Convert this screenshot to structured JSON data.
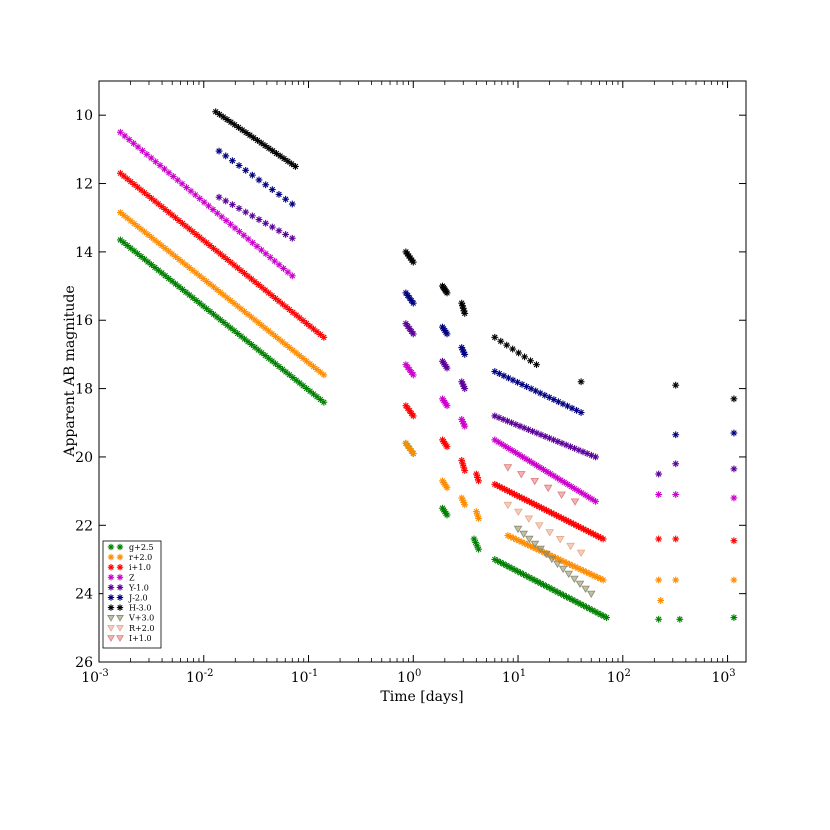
{
  "chart_data": {
    "type": "scatter",
    "title": "",
    "xlabel": "Time [days]",
    "ylabel": "Apparent AB magnitude",
    "xscale": "log",
    "xlim": [
      0.001,
      1500
    ],
    "ylim": [
      26,
      9
    ],
    "y_inverted": true,
    "grid": false,
    "legend_position": "lower-left",
    "x_ticks": [
      {
        "value": 0.001,
        "base": "10",
        "exp": "-3"
      },
      {
        "value": 0.01,
        "base": "10",
        "exp": "-2"
      },
      {
        "value": 0.1,
        "base": "10",
        "exp": "-1"
      },
      {
        "value": 1,
        "base": "10",
        "exp": "0"
      },
      {
        "value": 10,
        "base": "10",
        "exp": "1"
      },
      {
        "value": 100,
        "base": "10",
        "exp": "2"
      },
      {
        "value": 1000,
        "base": "10",
        "exp": "3"
      }
    ],
    "y_ticks": [
      10,
      12,
      14,
      16,
      18,
      20,
      22,
      24,
      26
    ],
    "series": [
      {
        "name": "g+2.5",
        "color": "#008000",
        "marker": "star",
        "segments": [
          {
            "x0": 0.0016,
            "x1": 0.14,
            "y0": 13.65,
            "y1": 18.4,
            "n": 60
          },
          {
            "x0": 0.85,
            "x1": 1.0,
            "y0": 19.6,
            "y1": 19.9,
            "n": 5
          },
          {
            "x0": 1.9,
            "x1": 2.1,
            "y0": 21.5,
            "y1": 21.7,
            "n": 5
          },
          {
            "x0": 3.8,
            "x1": 4.2,
            "y0": 22.4,
            "y1": 22.7,
            "n": 4
          },
          {
            "x0": 6,
            "x1": 70,
            "y0": 23.0,
            "y1": 24.7,
            "n": 40
          },
          {
            "x0": 220,
            "x1": 220,
            "y0": 24.75,
            "y1": 24.75,
            "n": 1
          },
          {
            "x0": 350,
            "x1": 350,
            "y0": 24.75,
            "y1": 24.75,
            "n": 1
          },
          {
            "x0": 1150,
            "x1": 1150,
            "y0": 24.7,
            "y1": 24.7,
            "n": 1
          }
        ]
      },
      {
        "name": "r+2.0",
        "color": "#ff8c00",
        "marker": "star",
        "segments": [
          {
            "x0": 0.0016,
            "x1": 0.14,
            "y0": 12.85,
            "y1": 17.6,
            "n": 60
          },
          {
            "x0": 0.85,
            "x1": 1.0,
            "y0": 19.6,
            "y1": 19.9,
            "n": 5
          },
          {
            "x0": 1.9,
            "x1": 2.1,
            "y0": 20.7,
            "y1": 20.9,
            "n": 5
          },
          {
            "x0": 2.9,
            "x1": 3.1,
            "y0": 21.2,
            "y1": 21.4,
            "n": 4
          },
          {
            "x0": 4,
            "x1": 4.2,
            "y0": 21.6,
            "y1": 21.8,
            "n": 3
          },
          {
            "x0": 8,
            "x1": 65,
            "y0": 22.3,
            "y1": 23.6,
            "n": 35
          },
          {
            "x0": 220,
            "x1": 220,
            "y0": 23.6,
            "y1": 23.6,
            "n": 1
          },
          {
            "x0": 230,
            "x1": 230,
            "y0": 24.2,
            "y1": 24.2,
            "n": 1
          },
          {
            "x0": 320,
            "x1": 320,
            "y0": 23.6,
            "y1": 23.6,
            "n": 1
          },
          {
            "x0": 1150,
            "x1": 1150,
            "y0": 23.6,
            "y1": 23.6,
            "n": 1
          }
        ]
      },
      {
        "name": "i+1.0",
        "color": "#ff0000",
        "marker": "star",
        "segments": [
          {
            "x0": 0.0016,
            "x1": 0.14,
            "y0": 11.7,
            "y1": 16.5,
            "n": 60
          },
          {
            "x0": 0.85,
            "x1": 1.0,
            "y0": 18.5,
            "y1": 18.8,
            "n": 5
          },
          {
            "x0": 1.9,
            "x1": 2.1,
            "y0": 19.5,
            "y1": 19.7,
            "n": 5
          },
          {
            "x0": 2.9,
            "x1": 3.1,
            "y0": 20.1,
            "y1": 20.4,
            "n": 4
          },
          {
            "x0": 4,
            "x1": 4.2,
            "y0": 20.5,
            "y1": 20.7,
            "n": 3
          },
          {
            "x0": 6,
            "x1": 65,
            "y0": 20.8,
            "y1": 22.4,
            "n": 45
          },
          {
            "x0": 220,
            "x1": 220,
            "y0": 22.4,
            "y1": 22.4,
            "n": 1
          },
          {
            "x0": 320,
            "x1": 320,
            "y0": 22.4,
            "y1": 22.4,
            "n": 1
          },
          {
            "x0": 1150,
            "x1": 1150,
            "y0": 22.45,
            "y1": 22.45,
            "n": 1
          }
        ]
      },
      {
        "name": "Z",
        "color": "#cc00cc",
        "marker": "star",
        "segments": [
          {
            "x0": 0.0016,
            "x1": 0.07,
            "y0": 10.5,
            "y1": 14.7,
            "n": 40
          },
          {
            "x0": 0.85,
            "x1": 1.0,
            "y0": 17.3,
            "y1": 17.6,
            "n": 5
          },
          {
            "x0": 1.9,
            "x1": 2.1,
            "y0": 18.3,
            "y1": 18.5,
            "n": 5
          },
          {
            "x0": 2.9,
            "x1": 3.1,
            "y0": 18.9,
            "y1": 19.1,
            "n": 4
          },
          {
            "x0": 6,
            "x1": 55,
            "y0": 19.5,
            "y1": 21.3,
            "n": 30
          },
          {
            "x0": 220,
            "x1": 220,
            "y0": 21.1,
            "y1": 21.1,
            "n": 1
          },
          {
            "x0": 320,
            "x1": 320,
            "y0": 21.1,
            "y1": 21.1,
            "n": 1
          },
          {
            "x0": 1150,
            "x1": 1150,
            "y0": 21.2,
            "y1": 21.2,
            "n": 1
          }
        ]
      },
      {
        "name": "Y-1.0",
        "color": "#5a0099",
        "marker": "star",
        "segments": [
          {
            "x0": 0.014,
            "x1": 0.07,
            "y0": 12.4,
            "y1": 13.6,
            "n": 12
          },
          {
            "x0": 0.85,
            "x1": 1.0,
            "y0": 16.1,
            "y1": 16.4,
            "n": 5
          },
          {
            "x0": 1.9,
            "x1": 2.1,
            "y0": 17.2,
            "y1": 17.4,
            "n": 5
          },
          {
            "x0": 2.9,
            "x1": 3.1,
            "y0": 17.8,
            "y1": 18.0,
            "n": 4
          },
          {
            "x0": 6,
            "x1": 55,
            "y0": 18.8,
            "y1": 20.0,
            "n": 25
          },
          {
            "x0": 220,
            "x1": 220,
            "y0": 20.5,
            "y1": 20.5,
            "n": 1
          },
          {
            "x0": 320,
            "x1": 320,
            "y0": 20.2,
            "y1": 20.2,
            "n": 1
          },
          {
            "x0": 1150,
            "x1": 1150,
            "y0": 20.35,
            "y1": 20.35,
            "n": 1
          }
        ]
      },
      {
        "name": "J-2.0",
        "color": "#000080",
        "marker": "star",
        "segments": [
          {
            "x0": 0.014,
            "x1": 0.07,
            "y0": 11.05,
            "y1": 12.6,
            "n": 12
          },
          {
            "x0": 0.85,
            "x1": 1.0,
            "y0": 15.2,
            "y1": 15.5,
            "n": 5
          },
          {
            "x0": 1.9,
            "x1": 2.1,
            "y0": 16.2,
            "y1": 16.4,
            "n": 5
          },
          {
            "x0": 2.9,
            "x1": 3.1,
            "y0": 16.8,
            "y1": 17.0,
            "n": 4
          },
          {
            "x0": 6,
            "x1": 40,
            "y0": 17.5,
            "y1": 18.7,
            "n": 20
          },
          {
            "x0": 320,
            "x1": 320,
            "y0": 19.35,
            "y1": 19.35,
            "n": 1
          },
          {
            "x0": 1150,
            "x1": 1150,
            "y0": 19.3,
            "y1": 19.3,
            "n": 1
          }
        ]
      },
      {
        "name": "H-3.0",
        "color": "#000000",
        "marker": "star",
        "segments": [
          {
            "x0": 0.013,
            "x1": 0.075,
            "y0": 9.9,
            "y1": 11.5,
            "n": 22
          },
          {
            "x0": 0.85,
            "x1": 1.0,
            "y0": 14.0,
            "y1": 14.3,
            "n": 6
          },
          {
            "x0": 1.9,
            "x1": 2.1,
            "y0": 15.0,
            "y1": 15.2,
            "n": 6
          },
          {
            "x0": 2.9,
            "x1": 3.1,
            "y0": 15.5,
            "y1": 15.8,
            "n": 5
          },
          {
            "x0": 6,
            "x1": 15,
            "y0": 16.5,
            "y1": 17.3,
            "n": 8
          },
          {
            "x0": 40,
            "x1": 40,
            "y0": 17.8,
            "y1": 17.8,
            "n": 1
          },
          {
            "x0": 320,
            "x1": 320,
            "y0": 17.9,
            "y1": 17.9,
            "n": 1
          },
          {
            "x0": 1150,
            "x1": 1150,
            "y0": 18.3,
            "y1": 18.3,
            "n": 1
          }
        ]
      },
      {
        "name": "V+3.0",
        "color": "#8b8b6b",
        "marker": "triangle-down",
        "segments": [
          {
            "x0": 10,
            "x1": 50,
            "y0": 22.1,
            "y1": 24.0,
            "n": 14
          }
        ]
      },
      {
        "name": "R+2.0",
        "color": "#e8a58a",
        "marker": "triangle-down",
        "segments": [
          {
            "x0": 8,
            "x1": 40,
            "y0": 21.4,
            "y1": 22.8,
            "n": 8
          }
        ]
      },
      {
        "name": "I+1.0",
        "color": "#e07a7a",
        "marker": "triangle-down",
        "segments": [
          {
            "x0": 8,
            "x1": 35,
            "y0": 20.3,
            "y1": 21.3,
            "n": 6
          }
        ]
      }
    ]
  }
}
